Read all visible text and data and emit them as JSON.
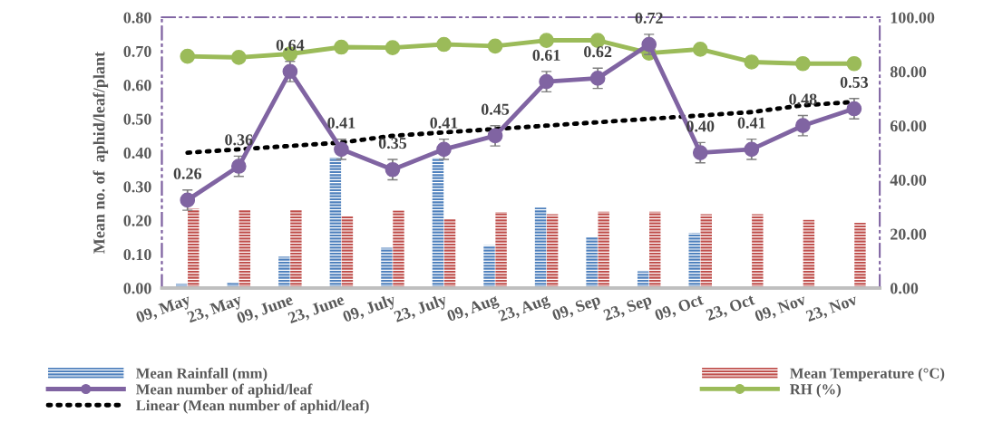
{
  "chart_data": {
    "type": "bar",
    "ylabel": "Mean no. of  aphid/leaf/plant",
    "categories": [
      "09, May",
      "23, May",
      "09, June",
      "23, June",
      "09, July",
      "23, July",
      "09, Aug",
      "23, Aug",
      "09, Sep",
      "23, Sep",
      "09, Oct",
      "23, Oct",
      "09, Nov",
      "23, Nov"
    ],
    "series": [
      {
        "name": "Mean Rainfall (mm)",
        "axis": "y2",
        "color": "#4f81bd",
        "values": [
          1.5,
          1.9,
          11.6,
          48.2,
          14.9,
          47.9,
          15.8,
          29.7,
          18.9,
          6.2,
          20.3,
          null,
          null,
          null
        ]
      },
      {
        "name": "Mean Temperature (°C)",
        "axis": "y2",
        "color": "#c0504d",
        "values": [
          29.3,
          28.9,
          28.9,
          26.7,
          28.6,
          25.7,
          28.0,
          27.3,
          28.2,
          28.2,
          27.3,
          27.3,
          25.2,
          24.1
        ]
      },
      {
        "name": "Mean number of aphid/leaf",
        "type": "line",
        "color": "#8064a2",
        "marker": "circle",
        "values": [
          0.26,
          0.36,
          0.64,
          0.41,
          0.35,
          0.41,
          0.45,
          0.61,
          0.62,
          0.72,
          0.4,
          0.41,
          0.48,
          0.53
        ],
        "value_labels": [
          "0.26",
          "0.36",
          "0.64",
          "0.41",
          "0.35",
          "0.41",
          "0.45",
          "0.61",
          "0.62",
          "0.72",
          "0.40",
          "0.41",
          "0.48",
          "0.53"
        ],
        "errors": [
          0.03,
          0.03,
          0.03,
          0.03,
          0.03,
          0.03,
          0.03,
          0.03,
          0.03,
          0.03,
          0.03,
          0.03,
          0.03,
          0.03
        ]
      },
      {
        "name": "RH (%)",
        "type": "line",
        "axis": "y2",
        "color": "#9bbb59",
        "marker": "circle",
        "values": [
          85.6,
          85.2,
          86.5,
          89.0,
          88.8,
          90.0,
          89.4,
          91.5,
          91.5,
          86.8,
          88.2,
          83.5,
          82.9,
          82.9
        ]
      },
      {
        "name": "Linear (Mean number of aphid/leaf)",
        "type": "line",
        "color": "#000000",
        "marker": "none",
        "line_style": "dotted",
        "values": [
          0.4,
          0.41,
          0.42,
          0.43,
          0.45,
          0.46,
          0.47,
          0.48,
          0.49,
          0.5,
          0.51,
          0.52,
          0.54,
          0.55
        ]
      }
    ],
    "ylim": [
      0,
      0.8
    ],
    "yticks": [
      {
        "value": 0,
        "label": "0.00"
      },
      {
        "value": 0.1,
        "label": "0.10"
      },
      {
        "value": 0.2,
        "label": "0.20"
      },
      {
        "value": 0.3,
        "label": "0.30"
      },
      {
        "value": 0.4,
        "label": "0.40"
      },
      {
        "value": 0.5,
        "label": "0.50"
      },
      {
        "value": 0.6,
        "label": "0.60"
      },
      {
        "value": 0.7,
        "label": "0.70"
      },
      {
        "value": 0.8,
        "label": "0.80"
      }
    ],
    "y2lim": [
      0,
      100
    ],
    "y2ticks": [
      {
        "value": 0,
        "label": "0.00"
      },
      {
        "value": 20,
        "label": "20.00"
      },
      {
        "value": 40,
        "label": "40.00"
      },
      {
        "value": 60,
        "label": "60.00"
      },
      {
        "value": 80,
        "label": "80.00"
      },
      {
        "value": 100,
        "label": "100.00"
      }
    ],
    "grid": false,
    "legend": "bottom"
  }
}
